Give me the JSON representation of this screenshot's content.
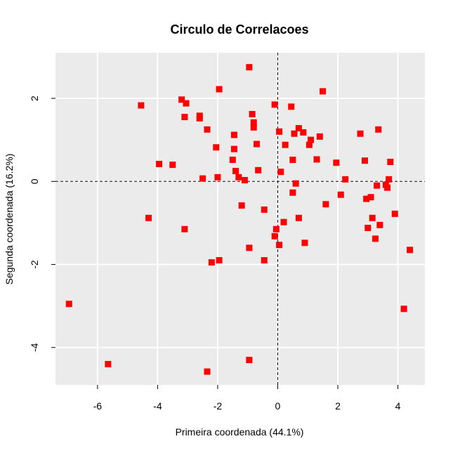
{
  "chart_data": {
    "type": "scatter",
    "title": "Circulo de Correlacoes",
    "xlabel": "Primeira coordenada (44.1%)",
    "ylabel": "Segunda coordenada (16.2%)",
    "xlim": [
      -7.4,
      4.9
    ],
    "ylim": [
      -4.9,
      3.1
    ],
    "xticks": [
      -6,
      -4,
      -2,
      0,
      2,
      4
    ],
    "yticks": [
      -4,
      -2,
      0,
      2
    ],
    "grid": true,
    "reference_lines": {
      "x": 0,
      "y": 0,
      "style": "dashed"
    },
    "colors": {
      "panel": "#ebebeb",
      "grid": "#ffffff",
      "points": "#ff0000",
      "reference": "#000000"
    },
    "marker": "square",
    "points": [
      {
        "x": -6.95,
        "y": -2.95
      },
      {
        "x": -5.65,
        "y": -4.4
      },
      {
        "x": -4.55,
        "y": 1.83
      },
      {
        "x": -4.3,
        "y": -0.88
      },
      {
        "x": -3.95,
        "y": 0.42
      },
      {
        "x": -3.5,
        "y": 0.4
      },
      {
        "x": -3.2,
        "y": 1.97
      },
      {
        "x": -3.05,
        "y": 1.88
      },
      {
        "x": -3.1,
        "y": 1.55
      },
      {
        "x": -3.1,
        "y": -1.15
      },
      {
        "x": -2.6,
        "y": 1.58
      },
      {
        "x": -2.6,
        "y": 1.52
      },
      {
        "x": -2.5,
        "y": 0.07
      },
      {
        "x": -2.35,
        "y": 1.25
      },
      {
        "x": -2.35,
        "y": -4.58
      },
      {
        "x": -2.2,
        "y": -1.95
      },
      {
        "x": -2.05,
        "y": 0.82
      },
      {
        "x": -2.0,
        "y": 0.1
      },
      {
        "x": -1.95,
        "y": 2.22
      },
      {
        "x": -1.95,
        "y": -1.9
      },
      {
        "x": -1.5,
        "y": 0.52
      },
      {
        "x": -1.45,
        "y": 1.12
      },
      {
        "x": -1.45,
        "y": 0.78
      },
      {
        "x": -1.4,
        "y": 0.25
      },
      {
        "x": -1.3,
        "y": 0.1
      },
      {
        "x": -1.2,
        "y": -0.58
      },
      {
        "x": -1.1,
        "y": 0.03
      },
      {
        "x": -0.95,
        "y": 2.75
      },
      {
        "x": -0.95,
        "y": -1.6
      },
      {
        "x": -0.95,
        "y": -4.3
      },
      {
        "x": -0.85,
        "y": 1.62
      },
      {
        "x": -0.8,
        "y": 1.42
      },
      {
        "x": -0.8,
        "y": 1.3
      },
      {
        "x": -0.7,
        "y": 0.9
      },
      {
        "x": -0.65,
        "y": 0.27
      },
      {
        "x": -0.45,
        "y": -0.68
      },
      {
        "x": -0.45,
        "y": -1.9
      },
      {
        "x": -0.1,
        "y": 1.85
      },
      {
        "x": -0.1,
        "y": -1.32
      },
      {
        "x": -0.05,
        "y": -1.15
      },
      {
        "x": 0.05,
        "y": 1.2
      },
      {
        "x": 0.1,
        "y": 0.23
      },
      {
        "x": 0.05,
        "y": -1.53
      },
      {
        "x": 0.2,
        "y": -0.98
      },
      {
        "x": 0.25,
        "y": 0.88
      },
      {
        "x": 0.45,
        "y": 1.8
      },
      {
        "x": 0.5,
        "y": 0.52
      },
      {
        "x": 0.5,
        "y": -0.27
      },
      {
        "x": 0.55,
        "y": 1.15
      },
      {
        "x": 0.6,
        "y": -0.05
      },
      {
        "x": 0.7,
        "y": 1.28
      },
      {
        "x": 0.7,
        "y": -0.88
      },
      {
        "x": 0.85,
        "y": 1.18
      },
      {
        "x": 0.9,
        "y": -1.48
      },
      {
        "x": 1.05,
        "y": 0.88
      },
      {
        "x": 1.1,
        "y": 1.0
      },
      {
        "x": 1.3,
        "y": 0.53
      },
      {
        "x": 1.4,
        "y": 1.08
      },
      {
        "x": 1.5,
        "y": 2.17
      },
      {
        "x": 1.6,
        "y": -0.55
      },
      {
        "x": 1.95,
        "y": 0.45
      },
      {
        "x": 2.1,
        "y": -0.32
      },
      {
        "x": 2.25,
        "y": 0.05
      },
      {
        "x": 2.75,
        "y": 1.15
      },
      {
        "x": 2.9,
        "y": 0.5
      },
      {
        "x": 2.95,
        "y": -0.42
      },
      {
        "x": 3.0,
        "y": -1.12
      },
      {
        "x": 3.1,
        "y": -0.38
      },
      {
        "x": 3.15,
        "y": -0.88
      },
      {
        "x": 3.25,
        "y": -1.38
      },
      {
        "x": 3.3,
        "y": -0.1
      },
      {
        "x": 3.35,
        "y": 1.25
      },
      {
        "x": 3.4,
        "y": -1.05
      },
      {
        "x": 3.6,
        "y": -0.08
      },
      {
        "x": 3.65,
        "y": -0.15
      },
      {
        "x": 3.7,
        "y": 0.05
      },
      {
        "x": 3.75,
        "y": 0.47
      },
      {
        "x": 3.9,
        "y": -0.78
      },
      {
        "x": 4.2,
        "y": -3.07
      },
      {
        "x": 4.4,
        "y": -1.65
      }
    ]
  }
}
